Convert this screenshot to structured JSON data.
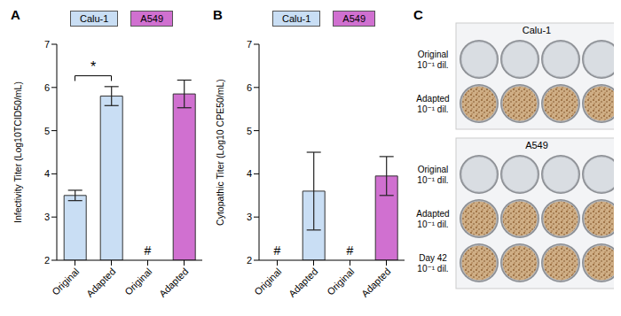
{
  "chart_data": [
    {
      "type": "bar",
      "panel": "A",
      "y_label": "Infectivity Titer (Log10TCID50/mL)",
      "categories": [
        "Original",
        "Adapted",
        "Original",
        "Adapted"
      ],
      "series": [
        {
          "name": "Calu-1",
          "color": "#c9def4",
          "values": [
            3.5,
            5.8,
            null,
            null
          ],
          "errors": [
            0.12,
            0.22,
            null,
            null
          ]
        },
        {
          "name": "A549",
          "color": "#d070d0",
          "values": [
            null,
            null,
            null,
            5.85
          ],
          "errors": [
            null,
            null,
            null,
            0.32
          ]
        }
      ],
      "ylim": [
        2,
        7
      ],
      "yticks": [
        2,
        3,
        4,
        5,
        6,
        7
      ],
      "legend": "top",
      "annotations": [
        {
          "text": "*",
          "between": [
            0,
            1
          ]
        },
        {
          "text": "#",
          "at": 2
        }
      ]
    },
    {
      "type": "bar",
      "panel": "B",
      "y_label": "Cytopathic Titer (Log10 CPE50/mL)",
      "categories": [
        "Original",
        "Adapted",
        "Original",
        "Adapted"
      ],
      "series": [
        {
          "name": "Calu-1",
          "color": "#c9def4",
          "values": [
            null,
            3.6,
            null,
            null
          ],
          "errors": [
            null,
            0.9,
            null,
            null
          ]
        },
        {
          "name": "A549",
          "color": "#d070d0",
          "values": [
            null,
            null,
            null,
            3.95
          ],
          "errors": [
            null,
            null,
            null,
            0.45
          ]
        }
      ],
      "ylim": [
        2,
        7
      ],
      "yticks": [
        2,
        3,
        4,
        5,
        6,
        7
      ],
      "legend": "top",
      "annotations": [
        {
          "text": "#",
          "at": 0
        },
        {
          "text": "#",
          "at": 2
        }
      ]
    }
  ],
  "panel_c": {
    "panel": "C",
    "plates_per_row": 4,
    "groups": [
      {
        "title": "Calu-1",
        "rows": [
          {
            "label": [
              "Original",
              "10⁻¹ dil."
            ]
          },
          {
            "label": [
              "Adapted",
              "10⁻¹ dil."
            ]
          }
        ]
      },
      {
        "title": "A549",
        "rows": [
          {
            "label": [
              "Original",
              "10⁻¹ dil."
            ]
          },
          {
            "label": [
              "Adapted",
              "10⁻¹ dil."
            ]
          },
          {
            "label": [
              "Day 42",
              "10⁻¹ dil."
            ]
          }
        ]
      }
    ]
  }
}
